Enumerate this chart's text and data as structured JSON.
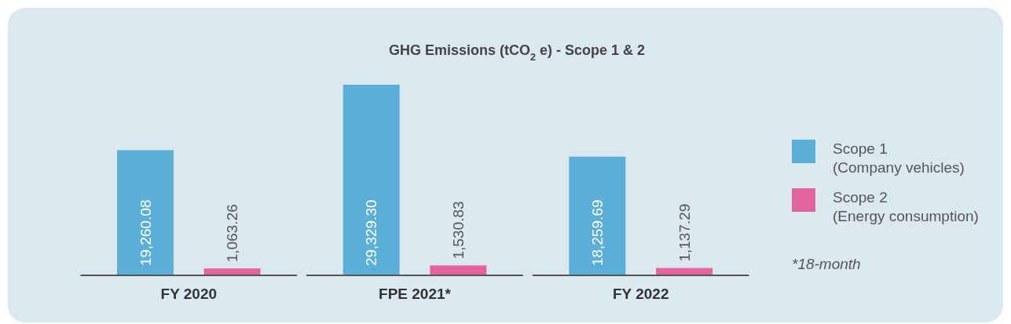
{
  "chart_data": {
    "type": "bar",
    "title": "GHG Emissions (tCO$_{2}$ e) - Scope 1 & 2",
    "categories": [
      "FY 2020",
      "FPE 2021*",
      "FY 2022"
    ],
    "series": [
      {
        "name": "Scope 1\n(Company vehicles)",
        "color": "#5aaed8",
        "values": [
          19260.08,
          29329.3,
          18259.69
        ],
        "value_labels": [
          "19,260.08",
          "29,329.30",
          "18,259.69"
        ]
      },
      {
        "name": "Scope 2\n(Energy consumption)",
        "color": "#e2639e",
        "values": [
          1063.26,
          1530.83,
          1137.29
        ],
        "value_labels": [
          "1,063.26",
          "1,530.83",
          "1,137.29"
        ]
      }
    ],
    "legend": "right",
    "annotations": [
      "*18-month"
    ]
  }
}
